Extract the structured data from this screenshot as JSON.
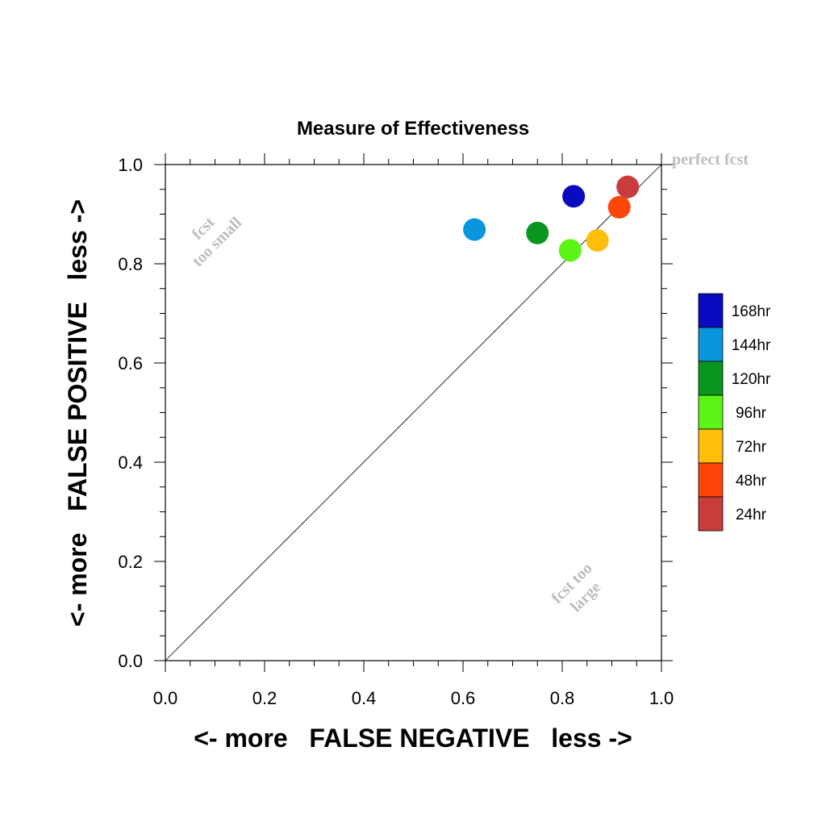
{
  "chart_data": {
    "type": "scatter",
    "title": "Measure of Effectiveness",
    "xlabel": "<- more   FALSE NEGATIVE   less ->",
    "ylabel": "<- more   FALSE POSITIVE   less ->",
    "xlim": [
      0.0,
      1.0
    ],
    "ylim": [
      0.0,
      1.0
    ],
    "xticks": [
      "0.0",
      "0.2",
      "0.4",
      "0.6",
      "0.8",
      "1.0"
    ],
    "yticks": [
      "0.0",
      "0.2",
      "0.4",
      "0.6",
      "0.8",
      "1.0"
    ],
    "grid": false,
    "diagonal_reference_line": true,
    "legend_position": "right",
    "annotations": {
      "perfect": "perfect fcst",
      "small_line1": "fcst",
      "small_line2": "too small",
      "large_line1": "fcst too",
      "large_line2": "large"
    },
    "series": [
      {
        "name": "168hr",
        "color": "#0a0ac0",
        "x": 0.823,
        "y": 0.936
      },
      {
        "name": "144hr",
        "color": "#0a96dc",
        "x": 0.623,
        "y": 0.869
      },
      {
        "name": "120hr",
        "color": "#0a961e",
        "x": 0.75,
        "y": 0.862
      },
      {
        "name": "96hr",
        "color": "#5af514",
        "x": 0.816,
        "y": 0.827
      },
      {
        "name": "72hr",
        "color": "#ffbe0a",
        "x": 0.871,
        "y": 0.847
      },
      {
        "name": "48hr",
        "color": "#ff460a",
        "x": 0.915,
        "y": 0.914
      },
      {
        "name": "24hr",
        "color": "#c83c3c",
        "x": 0.932,
        "y": 0.955
      }
    ]
  }
}
